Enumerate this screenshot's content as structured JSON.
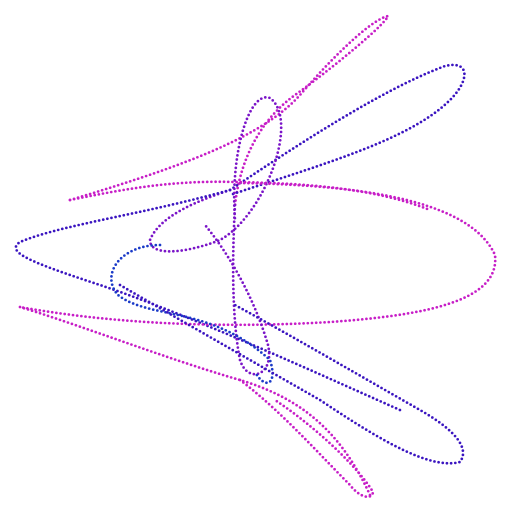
{
  "figure": {
    "kind": "dotted parametric curve (harmonograph-like)",
    "background_color": "#ffffff",
    "colors": {
      "magenta": "#c71ec7",
      "violet": "#7a14c8",
      "indigo": "#3a14c0",
      "blue": "#1a3ac8"
    },
    "curves": [
      {
        "name": "upper-right-spike",
        "color": "magenta"
      },
      {
        "name": "upper-long-loop",
        "color": "indigo"
      },
      {
        "name": "upper-left-spike",
        "color": "magenta"
      },
      {
        "name": "center-small-loop",
        "color": "violet"
      },
      {
        "name": "left-wide-loop",
        "color": "indigo"
      },
      {
        "name": "right-large-lobe",
        "color": "magenta"
      },
      {
        "name": "center-vertical-loop",
        "color": "violet"
      },
      {
        "name": "lower-left-inner-loop",
        "color": "blue"
      },
      {
        "name": "lower-long-loop",
        "color": "indigo"
      },
      {
        "name": "lower-left-spike",
        "color": "magenta"
      },
      {
        "name": "bottom-spike",
        "color": "magenta"
      }
    ]
  }
}
